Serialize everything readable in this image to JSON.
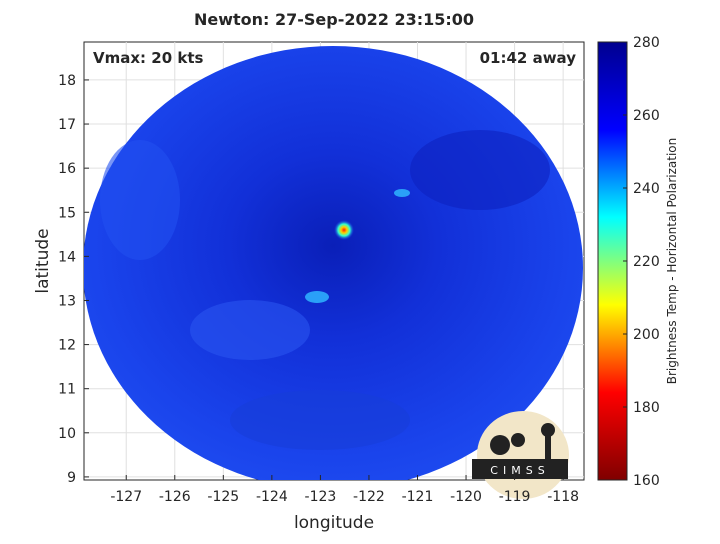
{
  "chart_data": {
    "type": "map-image",
    "title": "Newton: 27-Sep-2022 23:15:00",
    "annotations": [
      "Vmax: 20 kts",
      "01:42 away"
    ],
    "xlabel": "longitude",
    "ylabel": "latitude",
    "xlim": [
      -127.87,
      -117.57
    ],
    "xticks": [
      -127,
      -126,
      -125,
      -124,
      -123,
      -122,
      -121,
      -120,
      -119,
      -118
    ],
    "ylim": [
      8.93,
      18.86
    ],
    "yticks": [
      9,
      10,
      11,
      12,
      13,
      14,
      15,
      16,
      17,
      18
    ],
    "grid": true,
    "colorbar": {
      "label": "Brightness Temp - Horizontal Polarization",
      "lim": [
        160,
        280
      ],
      "ticks": [
        160,
        180,
        200,
        220,
        240,
        260,
        280
      ],
      "colors": [
        "#800000",
        "#ff0000",
        "#ffff00",
        "#00ffff",
        "#0000ff",
        "#00008f"
      ]
    },
    "logo_text": "CIMSS"
  }
}
